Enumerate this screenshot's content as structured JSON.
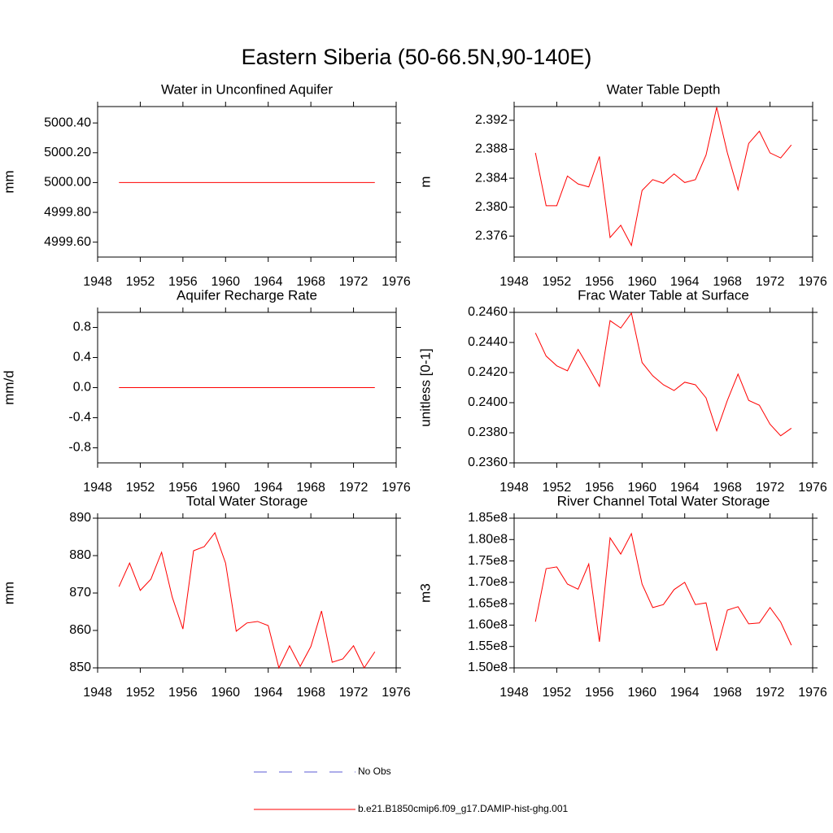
{
  "title": "Eastern Siberia (50-66.5N,90-140E)",
  "legend": [
    {
      "name": "No Obs",
      "color": "#5b5bd6",
      "style": "dashed"
    },
    {
      "name": "b.e21.B1850cmip6.f09_g17.DAMIP-hist-ghg.001",
      "color": "#ff0000",
      "style": "solid"
    }
  ],
  "chart_data": [
    {
      "type": "line",
      "title": "Water in Unconfined Aquifer",
      "ylabel": "mm",
      "x": [
        1950,
        1951,
        1952,
        1953,
        1954,
        1955,
        1956,
        1957,
        1958,
        1959,
        1960,
        1961,
        1962,
        1963,
        1964,
        1965,
        1966,
        1967,
        1968,
        1969,
        1970,
        1971,
        1972,
        1973,
        1974
      ],
      "xlim": [
        1948,
        1976
      ],
      "xticks": [
        1948,
        1952,
        1956,
        1960,
        1964,
        1968,
        1972,
        1976
      ],
      "ylim": [
        4999.5,
        5000.51
      ],
      "yticks": [
        {
          "value": 4999.6,
          "label": "4999.60"
        },
        {
          "value": 4999.8,
          "label": "4999.80"
        },
        {
          "value": 5000,
          "label": "5000.00"
        },
        {
          "value": 5000.2,
          "label": "5000.20"
        },
        {
          "value": 5000.4,
          "label": "5000.40"
        }
      ],
      "grid": false,
      "series": [
        {
          "color": "#ff0000",
          "values": [
            5000,
            5000,
            5000,
            5000,
            5000,
            5000,
            5000,
            5000,
            5000,
            5000,
            5000,
            5000,
            5000,
            5000,
            5000,
            5000,
            5000,
            5000,
            5000,
            5000,
            5000,
            5000,
            5000,
            5000,
            5000
          ]
        }
      ]
    },
    {
      "type": "line",
      "title": "Water Table Depth",
      "ylabel": "m",
      "x": [
        1950,
        1951,
        1952,
        1953,
        1954,
        1955,
        1956,
        1957,
        1958,
        1959,
        1960,
        1961,
        1962,
        1963,
        1964,
        1965,
        1966,
        1967,
        1968,
        1969,
        1970,
        1971,
        1972,
        1973,
        1974
      ],
      "xlim": [
        1948,
        1976
      ],
      "xticks": [
        1948,
        1952,
        1956,
        1960,
        1964,
        1968,
        1972,
        1976
      ],
      "ylim": [
        2.3731,
        2.3939
      ],
      "yticks": [
        2.376,
        {
          "value": 2.38,
          "label": "2.380"
        },
        2.384,
        2.388,
        2.392
      ],
      "grid": false,
      "series": [
        {
          "color": "#ff0000",
          "values": [
            2.3875,
            2.3802,
            2.3802,
            2.3843,
            2.3832,
            2.3828,
            2.387,
            2.3758,
            2.3775,
            2.3747,
            2.3823,
            2.3838,
            2.3833,
            2.3846,
            2.3834,
            2.3838,
            2.3872,
            2.3938,
            2.3875,
            2.3824,
            2.3888,
            2.3905,
            2.3875,
            2.3868,
            2.3886
          ]
        }
      ]
    },
    {
      "type": "line",
      "title": "Aquifer Recharge Rate",
      "ylabel": "mm/d",
      "x": [
        1950,
        1951,
        1952,
        1953,
        1954,
        1955,
        1956,
        1957,
        1958,
        1959,
        1960,
        1961,
        1962,
        1963,
        1964,
        1965,
        1966,
        1967,
        1968,
        1969,
        1970,
        1971,
        1972,
        1973,
        1974
      ],
      "xlim": [
        1948,
        1976
      ],
      "xticks": [
        1948,
        1952,
        1956,
        1960,
        1964,
        1968,
        1972,
        1976
      ],
      "ylim": [
        -1.0,
        1.0
      ],
      "yticks": [
        -0.8,
        -0.4,
        {
          "value": 0,
          "label": "0.0"
        },
        0.4,
        0.8
      ],
      "grid": false,
      "series": [
        {
          "color": "#ff0000",
          "values": [
            0,
            0,
            0,
            0,
            0,
            0,
            0,
            0,
            0,
            0,
            0,
            0,
            0,
            0,
            0,
            0,
            0,
            0,
            0,
            0,
            0,
            0,
            0,
            0,
            0
          ]
        }
      ]
    },
    {
      "type": "line",
      "title": "Frac Water Table at Surface",
      "ylabel": "unitless [0-1]",
      "x": [
        1950,
        1951,
        1952,
        1953,
        1954,
        1955,
        1956,
        1957,
        1958,
        1959,
        1960,
        1961,
        1962,
        1963,
        1964,
        1965,
        1966,
        1967,
        1968,
        1969,
        1970,
        1971,
        1972,
        1973,
        1974
      ],
      "xlim": [
        1948,
        1976
      ],
      "xticks": [
        1948,
        1952,
        1956,
        1960,
        1964,
        1968,
        1972,
        1976
      ],
      "ylim": [
        0.236,
        0.246
      ],
      "yticks": [
        {
          "value": 0.236,
          "label": "0.2360"
        },
        {
          "value": 0.238,
          "label": "0.2380"
        },
        {
          "value": 0.24,
          "label": "0.2400"
        },
        {
          "value": 0.242,
          "label": "0.2420"
        },
        {
          "value": 0.244,
          "label": "0.2440"
        },
        {
          "value": 0.246,
          "label": "0.2460"
        }
      ],
      "grid": false,
      "series": [
        {
          "color": "#ff0000",
          "values": [
            0.24463,
            0.2431,
            0.24245,
            0.24212,
            0.24354,
            0.24234,
            0.24108,
            0.24545,
            0.24496,
            0.24595,
            0.24267,
            0.24179,
            0.24119,
            0.24081,
            0.24136,
            0.24119,
            0.24032,
            0.23813,
            0.24015,
            0.2419,
            0.24015,
            0.23983,
            0.23857,
            0.2378,
            0.2383
          ]
        }
      ]
    },
    {
      "type": "line",
      "title": "Total Water Storage",
      "ylabel": "mm",
      "x": [
        1950,
        1951,
        1952,
        1953,
        1954,
        1955,
        1956,
        1957,
        1958,
        1959,
        1960,
        1961,
        1962,
        1963,
        1964,
        1965,
        1966,
        1967,
        1968,
        1969,
        1970,
        1971,
        1972,
        1973,
        1974
      ],
      "xlim": [
        1948,
        1976
      ],
      "xticks": [
        1948,
        1952,
        1956,
        1960,
        1964,
        1968,
        1972,
        1976
      ],
      "ylim": [
        850,
        890
      ],
      "yticks": [
        850,
        860,
        870,
        880,
        890
      ],
      "grid": false,
      "series": [
        {
          "color": "#ff0000",
          "values": [
            871.7,
            878,
            870.7,
            873.7,
            880.9,
            868.9,
            860.4,
            881.3,
            882.4,
            886.1,
            878,
            859.8,
            862,
            862.4,
            861.3,
            850,
            855.9,
            850.4,
            855.7,
            865.2,
            851.5,
            852.4,
            855.9,
            850,
            854.3
          ]
        }
      ]
    },
    {
      "type": "line",
      "title": "River Channel Total Water Storage",
      "ylabel": "m3",
      "x": [
        1950,
        1951,
        1952,
        1953,
        1954,
        1955,
        1956,
        1957,
        1958,
        1959,
        1960,
        1961,
        1962,
        1963,
        1964,
        1965,
        1966,
        1967,
        1968,
        1969,
        1970,
        1971,
        1972,
        1973,
        1974
      ],
      "xlim": [
        1948,
        1976
      ],
      "xticks": [
        1948,
        1952,
        1956,
        1960,
        1964,
        1968,
        1972,
        1976
      ],
      "ylim": [
        150000000,
        185000000
      ],
      "yticks": [
        {
          "value": 150000000,
          "label": "1.50e8"
        },
        {
          "value": 155000000,
          "label": "1.55e8"
        },
        {
          "value": 160000000,
          "label": "1.60e8"
        },
        {
          "value": 165000000,
          "label": "1.65e8"
        },
        {
          "value": 170000000,
          "label": "1.70e8"
        },
        {
          "value": 175000000,
          "label": "1.75e8"
        },
        {
          "value": 180000000,
          "label": "1.80e8"
        },
        {
          "value": 185000000,
          "label": "1.85e8"
        }
      ],
      "grid": false,
      "series": [
        {
          "color": "#ff0000",
          "values": [
            160800000,
            173200000,
            173600000,
            169600000,
            168400000,
            174300000,
            156100000,
            180400000,
            176600000,
            181400000,
            169600000,
            164100000,
            164800000,
            168300000,
            170000000,
            164800000,
            165200000,
            154000000,
            163500000,
            164300000,
            160300000,
            160500000,
            164100000,
            160700000,
            155300000
          ]
        }
      ]
    }
  ]
}
